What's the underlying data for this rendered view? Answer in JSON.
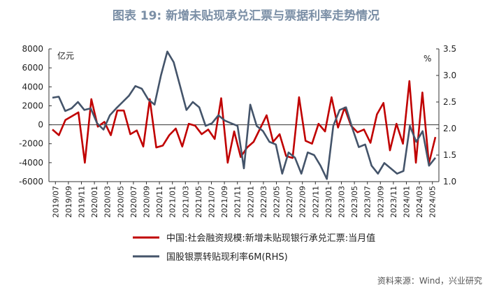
{
  "title": "图表 19: 新增未贴现承兑汇票与票据利率走势情况",
  "source": "资料来源：Wind，兴业研究",
  "chart_data": {
    "type": "line",
    "left_unit": "亿元",
    "right_unit": "%",
    "ylim_left": [
      -6000,
      8000
    ],
    "yticks_left": [
      8000,
      6000,
      4000,
      2000,
      0,
      -2000,
      -4000,
      -6000
    ],
    "ylim_right": [
      1.0,
      3.5
    ],
    "yticks_right": [
      "3.5",
      "3.0",
      "2.5",
      "2.0",
      "1.5",
      "1.0"
    ],
    "x_labels": [
      "2019/07",
      "2019/09",
      "2019/11",
      "2020/01",
      "2020/03",
      "2020/05",
      "2020/07",
      "2020/09",
      "2020/11",
      "2021/01",
      "2021/03",
      "2021/05",
      "2021/07",
      "2021/09",
      "2021/11",
      "2022/01",
      "2022/03",
      "2022/05",
      "2022/07",
      "2022/09",
      "2022/11",
      "2023/01",
      "2023/03",
      "2023/05",
      "2023/07",
      "2023/09",
      "2023/11",
      "2024/01",
      "2024/03",
      "2024/05"
    ],
    "series": [
      {
        "name": "中国:社会融资规模:新增未贴现银行承兑汇票:当月值",
        "color": "#c00000",
        "axis": "left",
        "values": [
          -500,
          -1100,
          500,
          900,
          1300,
          -4000,
          2700,
          -200,
          300,
          -1100,
          1500,
          1500,
          -1000,
          -600,
          -2300,
          2700,
          -2400,
          -2200,
          -1100,
          -400,
          -2300,
          100,
          -100,
          -1000,
          -500,
          -1500,
          2800,
          -4000,
          -700,
          -3400,
          -2400,
          -1800,
          -400,
          1000,
          -1800,
          -1000,
          -3300,
          -3500,
          2900,
          -1700,
          -2000,
          100,
          -700,
          2900,
          -300,
          1800,
          -100,
          -800,
          -500,
          -1900,
          1100,
          2300,
          -2700,
          100,
          -2000,
          4600,
          -4000,
          3400,
          -4100,
          -1300
        ],
        "smooth": false
      },
      {
        "name": "国股银票转贴现利率6M(RHS)",
        "color": "#44546a",
        "axis": "right",
        "values": [
          2.58,
          2.6,
          2.33,
          2.38,
          2.5,
          2.35,
          2.38,
          2.1,
          1.98,
          2.25,
          2.38,
          2.5,
          2.62,
          2.8,
          2.75,
          2.55,
          2.45,
          3.0,
          3.45,
          3.25,
          2.8,
          2.35,
          2.5,
          2.4,
          2.05,
          2.1,
          2.25,
          2.15,
          2.1,
          2.05,
          1.25,
          2.45,
          2.05,
          1.95,
          1.75,
          1.7,
          1.15,
          1.55,
          1.45,
          1.15,
          1.55,
          1.5,
          1.3,
          1.05,
          2.05,
          2.35,
          2.4,
          2.0,
          1.65,
          1.7,
          1.3,
          1.15,
          1.35,
          1.25,
          1.15,
          1.2,
          2.05,
          1.75,
          1.95,
          1.3,
          1.45
        ],
        "smooth": false
      }
    ],
    "legend_position": "bottom-center",
    "grid": false
  }
}
